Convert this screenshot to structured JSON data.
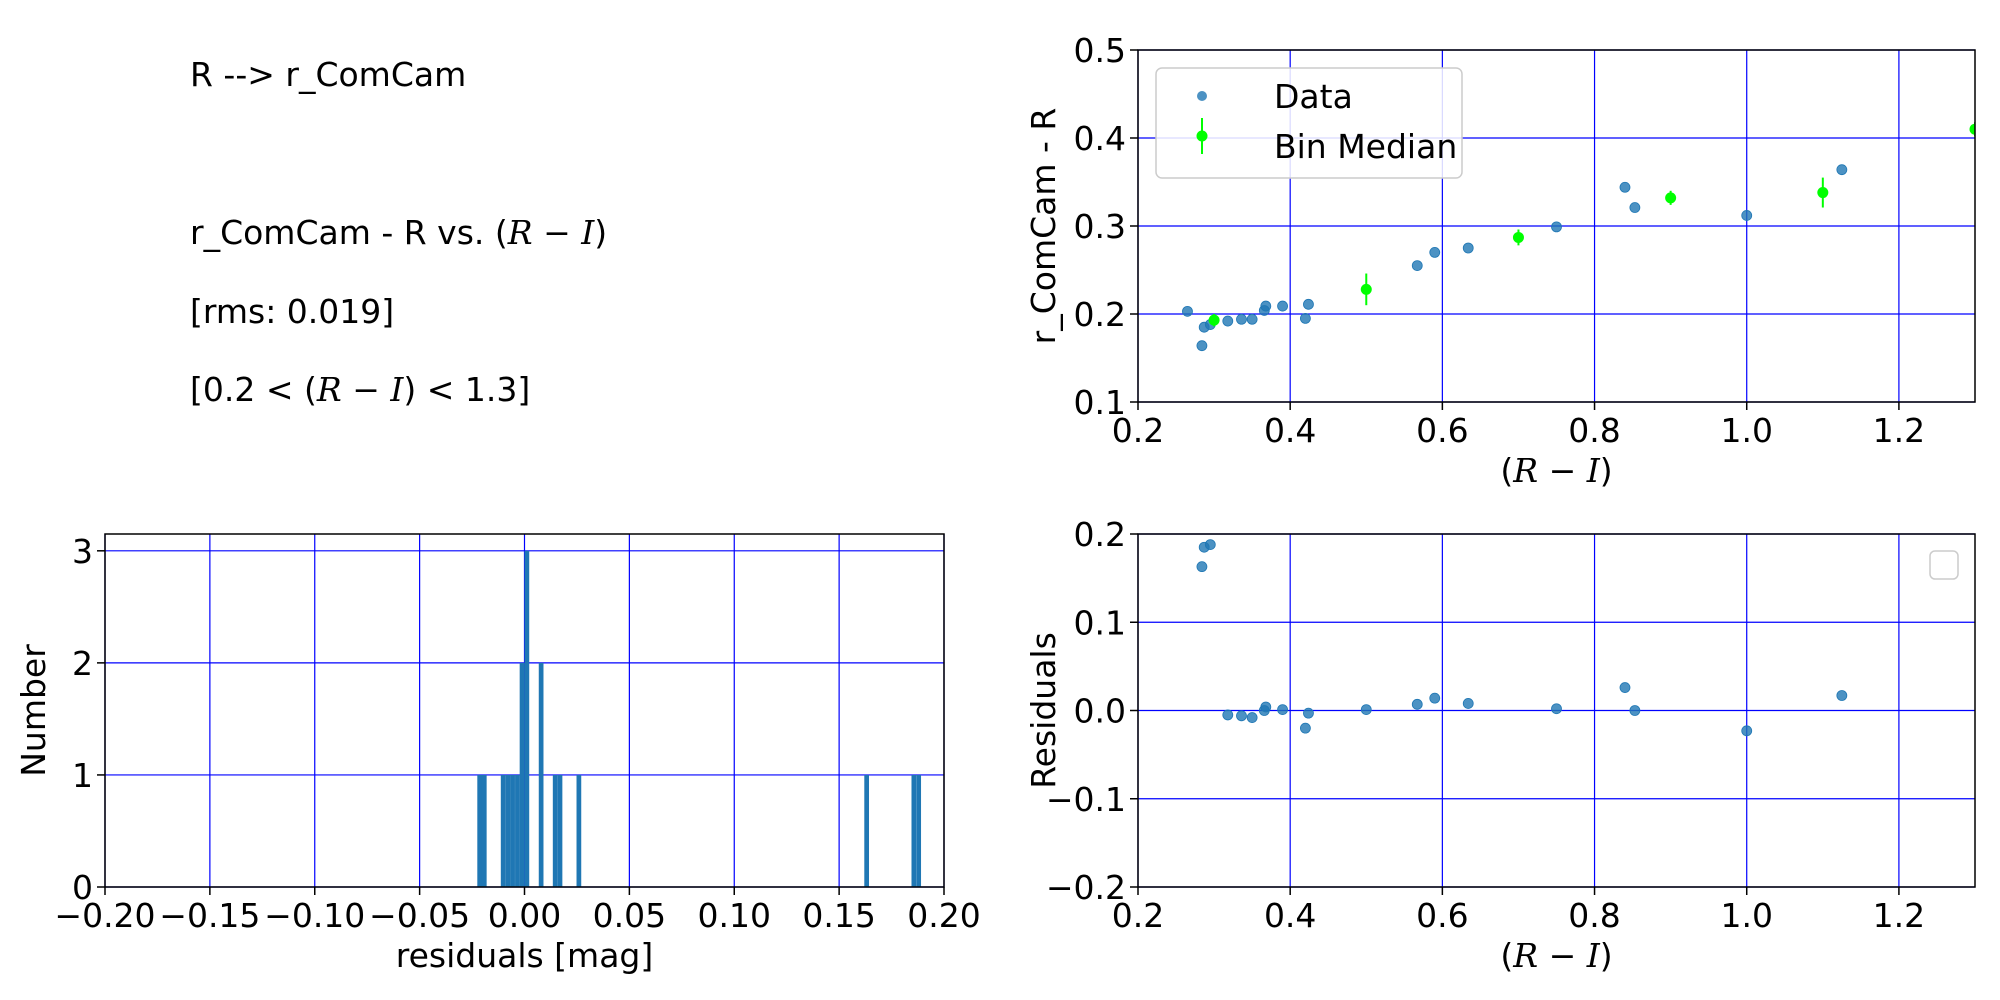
{
  "info": {
    "line1": "R --> r_ComCam",
    "line2_prefix": "r_ComCam - R vs. (",
    "line2_math": "R − I",
    "line2_suffix": ")",
    "line3": "[rms: 0.019]",
    "line4_prefix": "[0.2 < (",
    "line4_math": "R − I",
    "line4_suffix": ") < 1.3]"
  },
  "colors": {
    "data": "#1f77b4",
    "median": "#00ff00",
    "grid": "#0000ff"
  },
  "chart_data": [
    {
      "id": "top-right",
      "type": "scatter",
      "xlabel": "(R − I)",
      "ylabel": "r_ComCam - R",
      "xlim": [
        0.2,
        1.3
      ],
      "ylim": [
        0.1,
        0.5
      ],
      "xticks": [
        0.2,
        0.4,
        0.6,
        0.8,
        1.0,
        1.2
      ],
      "xtick_labels": [
        "0.2",
        "0.4",
        "0.6",
        "0.8",
        "1.0",
        "1.2"
      ],
      "yticks": [
        0.1,
        0.2,
        0.3,
        0.4,
        0.5
      ],
      "ytick_labels": [
        "0.1",
        "0.2",
        "0.3",
        "0.4",
        "0.5"
      ],
      "grid": true,
      "legend": {
        "placement": "upper-left",
        "entries": [
          "Data",
          "Bin Median"
        ]
      },
      "series": [
        {
          "name": "Data",
          "points": [
            [
              0.265,
              0.203
            ],
            [
              0.284,
              0.164
            ],
            [
              0.287,
              0.185
            ],
            [
              0.295,
              0.188
            ],
            [
              0.318,
              0.192
            ],
            [
              0.336,
              0.194
            ],
            [
              0.35,
              0.194
            ],
            [
              0.366,
              0.204
            ],
            [
              0.368,
              0.209
            ],
            [
              0.39,
              0.209
            ],
            [
              0.42,
              0.195
            ],
            [
              0.424,
              0.211
            ],
            [
              0.567,
              0.255
            ],
            [
              0.59,
              0.27
            ],
            [
              0.634,
              0.275
            ],
            [
              0.75,
              0.299
            ],
            [
              0.84,
              0.344
            ],
            [
              0.853,
              0.321
            ],
            [
              1.0,
              0.312
            ],
            [
              1.125,
              0.364
            ]
          ]
        },
        {
          "name": "Bin Median",
          "points": [
            [
              0.3,
              0.193,
              0.007
            ],
            [
              0.5,
              0.228,
              0.018
            ],
            [
              0.7,
              0.287,
              0.009
            ],
            [
              0.9,
              0.332,
              0.008
            ],
            [
              1.1,
              0.338,
              0.017
            ],
            [
              1.3,
              0.41,
              0.008
            ]
          ]
        }
      ]
    },
    {
      "id": "bottom-left",
      "type": "bar",
      "xlabel": "residuals [mag]",
      "ylabel": "Number",
      "xlim": [
        -0.2,
        0.2
      ],
      "ylim": [
        0,
        3.15
      ],
      "xticks": [
        -0.2,
        -0.15,
        -0.1,
        -0.05,
        0.0,
        0.05,
        0.1,
        0.15,
        0.2
      ],
      "xtick_labels": [
        "−0.20",
        "−0.15",
        "−0.10",
        "−0.05",
        "0.00",
        "0.05",
        "0.10",
        "0.15",
        "0.20"
      ],
      "yticks": [
        0,
        1,
        2,
        3
      ],
      "ytick_labels": [
        "0",
        "1",
        "2",
        "3"
      ],
      "grid": true,
      "bin_width": 0.00225,
      "bins": [
        [
          -0.0225,
          1
        ],
        [
          -0.0203,
          1
        ],
        [
          -0.0113,
          1
        ],
        [
          -0.009,
          1
        ],
        [
          -0.0068,
          1
        ],
        [
          -0.0045,
          1
        ],
        [
          -0.0023,
          2
        ],
        [
          0.0,
          3
        ],
        [
          0.0068,
          2
        ],
        [
          0.0135,
          1
        ],
        [
          0.0158,
          1
        ],
        [
          0.0248,
          1
        ],
        [
          0.162,
          1
        ],
        [
          0.1845,
          1
        ],
        [
          0.1868,
          1
        ]
      ]
    },
    {
      "id": "bottom-right",
      "type": "scatter",
      "xlabel": "(R − I)",
      "ylabel": "Residuals",
      "xlim": [
        0.2,
        1.3
      ],
      "ylim": [
        -0.2,
        0.2
      ],
      "xticks": [
        0.2,
        0.4,
        0.6,
        0.8,
        1.0,
        1.2
      ],
      "xtick_labels": [
        "0.2",
        "0.4",
        "0.6",
        "0.8",
        "1.0",
        "1.2"
      ],
      "yticks": [
        -0.2,
        -0.1,
        0.0,
        0.1,
        0.2
      ],
      "ytick_labels": [
        "−0.2",
        "−0.1",
        "0.0",
        "0.1",
        "0.2"
      ],
      "grid": true,
      "legend": {
        "placement": "upper-right",
        "entries": []
      },
      "series": [
        {
          "points": [
            [
              0.284,
              0.163
            ],
            [
              0.287,
              0.185
            ],
            [
              0.295,
              0.188
            ],
            [
              0.318,
              -0.005
            ],
            [
              0.336,
              -0.006
            ],
            [
              0.35,
              -0.008
            ],
            [
              0.366,
              0.0
            ],
            [
              0.368,
              0.004
            ],
            [
              0.39,
              0.001
            ],
            [
              0.42,
              -0.02
            ],
            [
              0.424,
              -0.003
            ],
            [
              0.5,
              0.001
            ],
            [
              0.567,
              0.007
            ],
            [
              0.59,
              0.014
            ],
            [
              0.634,
              0.008
            ],
            [
              0.75,
              0.002
            ],
            [
              0.84,
              0.026
            ],
            [
              0.853,
              0.0
            ],
            [
              1.0,
              -0.023
            ],
            [
              1.125,
              0.017
            ]
          ]
        }
      ]
    }
  ]
}
